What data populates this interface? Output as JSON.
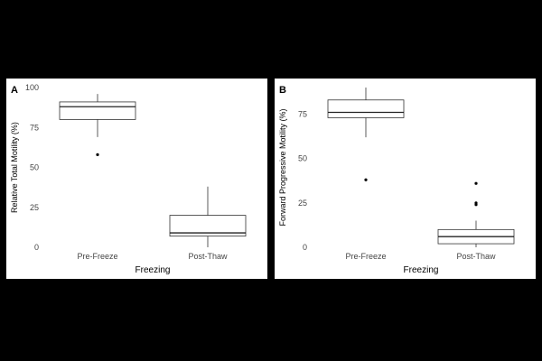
{
  "chart_data": [
    {
      "type": "boxplot",
      "panel_label": "A",
      "xlabel": "Freezing",
      "ylabel": "Relative Total Motility (%)",
      "ylim": [
        0,
        100
      ],
      "yticks": [
        0,
        25,
        50,
        75,
        100
      ],
      "categories": [
        "Pre-Freeze",
        "Post-Thaw"
      ],
      "boxes": [
        {
          "category": "Pre-Freeze",
          "whisker_low": 69,
          "q1": 80,
          "median": 88,
          "q3": 91,
          "whisker_high": 96,
          "outliers": [
            58
          ]
        },
        {
          "category": "Post-Thaw",
          "whisker_low": 0,
          "q1": 7,
          "median": 9,
          "q3": 20,
          "whisker_high": 38,
          "outliers": []
        }
      ]
    },
    {
      "type": "boxplot",
      "panel_label": "B",
      "xlabel": "Freezing",
      "ylabel": "Forward Progressive Motility (%)",
      "ylim": [
        0,
        90
      ],
      "yticks": [
        0,
        25,
        50,
        75
      ],
      "categories": [
        "Pre-Freeze",
        "Post-Thaw"
      ],
      "boxes": [
        {
          "category": "Pre-Freeze",
          "whisker_low": 62,
          "q1": 73,
          "median": 76,
          "q3": 83,
          "whisker_high": 90,
          "outliers": [
            38
          ]
        },
        {
          "category": "Post-Thaw",
          "whisker_low": 0,
          "q1": 2,
          "median": 6,
          "q3": 10,
          "whisker_high": 15,
          "outliers": [
            24,
            25,
            36
          ]
        }
      ]
    }
  ]
}
